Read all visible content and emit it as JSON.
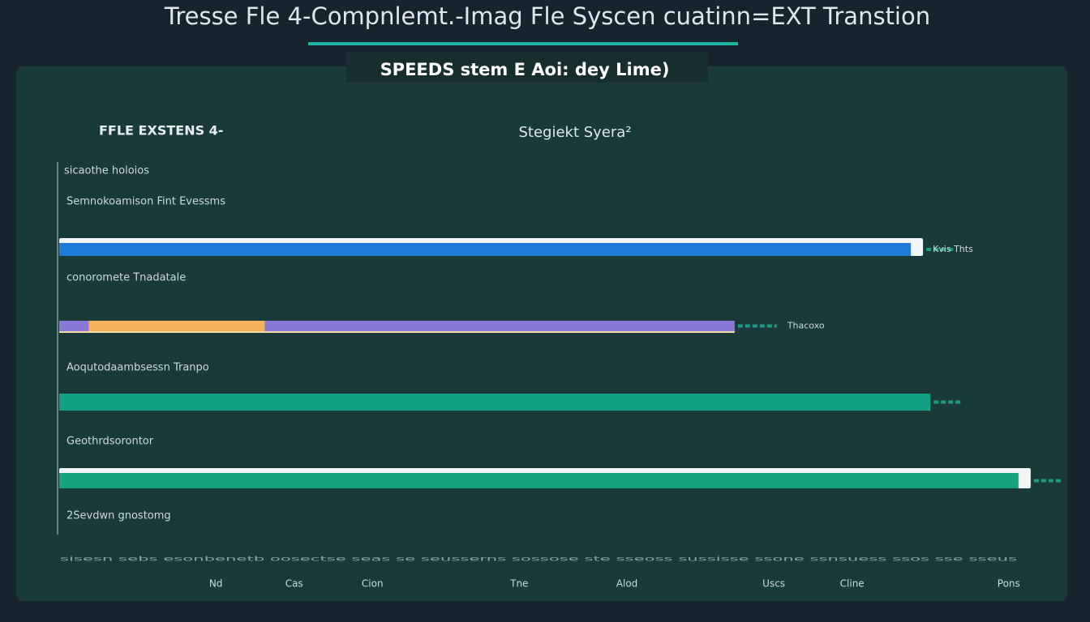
{
  "chart_data": {
    "type": "stacked-bar-horizontal",
    "title": "Tresse Fle 4-Compnlemt.-Imag Fle Syscen cuatinn=EXT Transtion",
    "subtitle": "SPEEDS stem E Aoi: dey Lime)",
    "left_heading": "FFLE EXSTENS 4-",
    "center_heading": "Stegiekt Syera²",
    "axis_label": "sicaothe holoios",
    "bottom_label": "2Sevdwn gnostomg",
    "footnote": "sisesn sebs esonbenetb oosectse seas se seusserns sossose ste sseoss sussisse ssone ssnsuess ssos sse sseus",
    "xlim": [
      0,
      100
    ],
    "xticks": [
      {
        "value": 16,
        "label": "Nd"
      },
      {
        "value": 24,
        "label": "Cas"
      },
      {
        "value": 32,
        "label": "Cion"
      },
      {
        "value": 47,
        "label": "Tne"
      },
      {
        "value": 58,
        "label": "Alod"
      },
      {
        "value": 73,
        "label": "Uscs"
      },
      {
        "value": 81,
        "label": "Cline"
      },
      {
        "value": 97,
        "label": "Pons"
      }
    ],
    "bars": [
      {
        "label": "Semnokoamison Fint Evessms",
        "note": "Kvis Thts",
        "segments": [
          {
            "value": 87,
            "color": "#1f7bd8"
          }
        ]
      },
      {
        "label": "conoromete Tnadatale",
        "note": "Thacoxo",
        "segments": [
          {
            "value": 3,
            "color": "#8a78d6"
          },
          {
            "value": 18,
            "color": "#f2b35a"
          },
          {
            "value": 48,
            "color": "#8a78d6"
          }
        ]
      },
      {
        "label": "Aoqutodaambsessn Tranpo",
        "segments": [
          {
            "value": 89,
            "color": "#12a085"
          }
        ]
      },
      {
        "label": "Geothrdsorontor",
        "segments": [
          {
            "value": 98,
            "color": "#16a37f"
          }
        ]
      }
    ]
  }
}
